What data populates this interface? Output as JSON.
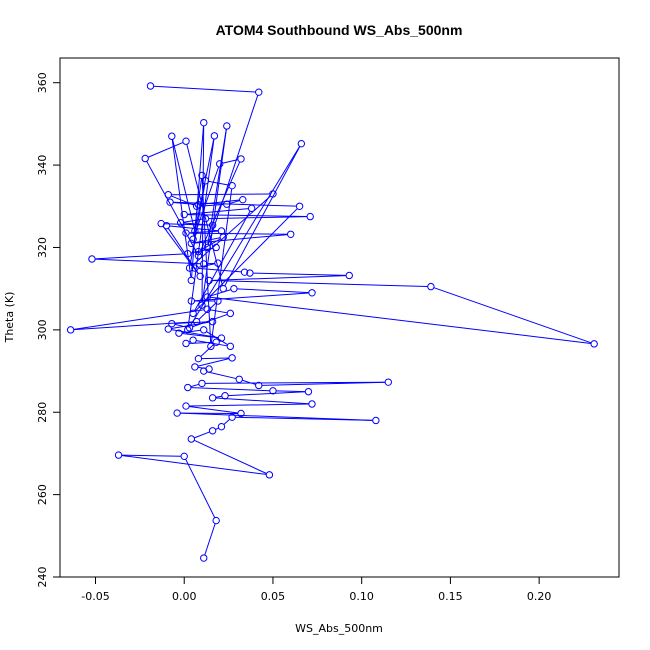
{
  "chart_data": {
    "type": "line",
    "title": "ATOM4 Southbound WS_Abs_500nm",
    "xlabel": "WS_Abs_500nm",
    "ylabel": "Theta (K)",
    "xlim": [
      -0.07,
      0.245
    ],
    "ylim": [
      240,
      366
    ],
    "x_ticks": [
      -0.05,
      0.0,
      0.05,
      0.1,
      0.15,
      0.2
    ],
    "x_tick_labels": [
      "-0.05",
      "0.00",
      "0.05",
      "0.10",
      "0.15",
      "0.20"
    ],
    "y_ticks": [
      240,
      260,
      280,
      300,
      320,
      340,
      360
    ],
    "y_tick_labels": [
      "240",
      "260",
      "280",
      "300",
      "320",
      "340",
      "360"
    ],
    "series_color": "#0000ff",
    "grid": false,
    "legend": "none",
    "series": [
      {
        "points": [
          [
            -0.019,
            359.2
          ],
          [
            0.042,
            357.7
          ],
          [
            0.013,
            320
          ],
          [
            0.024,
            349.5
          ],
          [
            0.01,
            306
          ],
          [
            0.011,
            350.3
          ],
          [
            0.004,
            312
          ],
          [
            -0.007,
            347.0
          ],
          [
            0.006,
            324
          ],
          [
            0.017,
            347.1
          ],
          [
            0.002,
            300
          ],
          [
            0.066,
            345.2
          ],
          [
            0.022,
            310
          ],
          [
            0.001,
            345.8
          ],
          [
            -0.022,
            341.6
          ],
          [
            0.008,
            318
          ],
          [
            0.032,
            341.5
          ],
          [
            0.02,
            340.3
          ],
          [
            0.005,
            322
          ],
          [
            0.01,
            337.5
          ],
          [
            0.015,
            296
          ],
          [
            0.027,
            335.0
          ],
          [
            0.012,
            336.2
          ],
          [
            0.003,
            315
          ],
          [
            0.05,
            333.0
          ],
          [
            -0.009,
            332.8
          ],
          [
            0.007,
            330
          ],
          [
            0.024,
            330.5
          ],
          [
            0.033,
            331.6
          ],
          [
            0.008,
            330.4
          ],
          [
            -0.008,
            331.0
          ],
          [
            0.065,
            330.0
          ],
          [
            0.005,
            304
          ],
          [
            0.038,
            329.5
          ],
          [
            0.0,
            328.0
          ],
          [
            0.071,
            327.5
          ],
          [
            0.012,
            327
          ],
          [
            -0.002,
            326.0
          ],
          [
            0.016,
            325.4
          ],
          [
            -0.013,
            325.8
          ],
          [
            0.009,
            313
          ],
          [
            -0.01,
            325.3
          ],
          [
            0.021,
            324
          ],
          [
            0.001,
            323.5
          ],
          [
            0.06,
            323.2
          ],
          [
            0.004,
            321
          ],
          [
            0.022,
            322.5
          ],
          [
            0.008,
            319
          ],
          [
            0.018,
            320
          ],
          [
            0.002,
            318.5
          ],
          [
            -0.052,
            317.2
          ],
          [
            0.011,
            316
          ],
          [
            0.019,
            316.2
          ],
          [
            0.006,
            315
          ],
          [
            0.034,
            314.0
          ],
          [
            0.037,
            313.8
          ],
          [
            0.093,
            313.2
          ],
          [
            0.014,
            312
          ],
          [
            0.139,
            310.5
          ],
          [
            0.231,
            296.6
          ],
          [
            0.013,
            308
          ],
          [
            0.028,
            310.0
          ],
          [
            0.072,
            309.0
          ],
          [
            0.004,
            307
          ],
          [
            0.019,
            307.0
          ],
          [
            0.007,
            302
          ],
          [
            -0.064,
            300.0
          ],
          [
            0.013,
            305
          ],
          [
            0.026,
            304
          ],
          [
            0.003,
            300.5
          ],
          [
            -0.007,
            301.5
          ],
          [
            0.016,
            302
          ],
          [
            -0.009,
            300.2
          ],
          [
            0.021,
            298
          ],
          [
            -0.003,
            299.2
          ],
          [
            0.011,
            300
          ],
          [
            0.026,
            296
          ],
          [
            0.005,
            297.5
          ],
          [
            0.001,
            296.7
          ],
          [
            0.018,
            297
          ],
          [
            0.008,
            293.0
          ],
          [
            0.027,
            293.2
          ],
          [
            0.006,
            291.0
          ],
          [
            0.014,
            290.5
          ],
          [
            0.011,
            290.0
          ],
          [
            0.031,
            288
          ],
          [
            0.042,
            286.5
          ],
          [
            0.115,
            287.3
          ],
          [
            0.01,
            287
          ],
          [
            0.002,
            286.0
          ],
          [
            0.05,
            285.2
          ],
          [
            0.07,
            285.0
          ],
          [
            0.023,
            284.0
          ],
          [
            0.016,
            283.5
          ],
          [
            0.072,
            282.0
          ],
          [
            0.001,
            281.5
          ],
          [
            0.032,
            279.7
          ],
          [
            -0.004,
            279.8
          ],
          [
            0.108,
            278.0
          ],
          [
            0.027,
            278.8
          ],
          [
            0.021,
            276.5
          ],
          [
            0.016,
            275.5
          ],
          [
            0.004,
            273.5
          ],
          [
            0.048,
            264.8
          ],
          [
            -0.037,
            269.6
          ],
          [
            0.0,
            269.3
          ],
          [
            0.018,
            253.7
          ],
          [
            0.011,
            244.6
          ]
        ]
      }
    ]
  }
}
